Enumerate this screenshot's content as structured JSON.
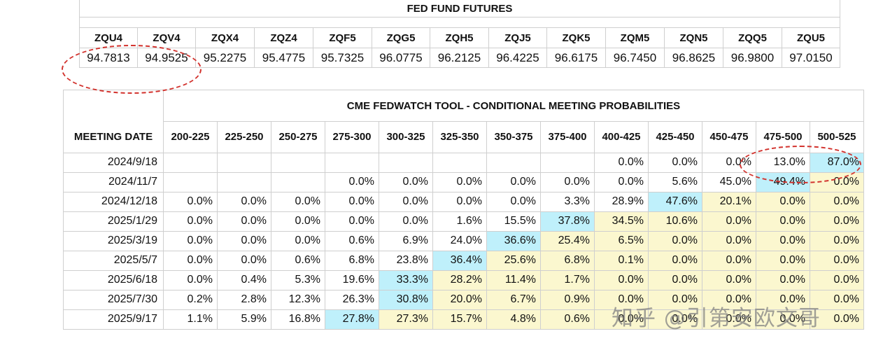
{
  "futures": {
    "title": "FED FUND FUTURES",
    "codes": [
      "ZQU4",
      "ZQV4",
      "ZQX4",
      "ZQZ4",
      "ZQF5",
      "ZQG5",
      "ZQH5",
      "ZQJ5",
      "ZQK5",
      "ZQM5",
      "ZQN5",
      "ZQQ5",
      "ZQU5"
    ],
    "prices": [
      "94.7813",
      "94.9525",
      "95.2275",
      "95.4775",
      "95.7325",
      "96.0775",
      "96.2125",
      "96.4225",
      "96.6175",
      "96.7450",
      "96.8625",
      "96.9800",
      "97.0150"
    ]
  },
  "fedwatch": {
    "title": "CME FEDWATCH TOOL - CONDITIONAL MEETING PROBABILITIES",
    "meeting_date_label": "MEETING DATE",
    "ranges": [
      "200-225",
      "225-250",
      "250-275",
      "275-300",
      "300-325",
      "325-350",
      "350-375",
      "375-400",
      "400-425",
      "425-450",
      "450-475",
      "475-500",
      "500-525"
    ],
    "rows": [
      {
        "date": "2024/9/18",
        "values": [
          "",
          "",
          "",
          "",
          "",
          "",
          "",
          "",
          "0.0%",
          "0.0%",
          "0.0%",
          "13.0%",
          "87.0%"
        ],
        "highlight": 12
      },
      {
        "date": "2024/11/7",
        "values": [
          "",
          "",
          "",
          "0.0%",
          "0.0%",
          "0.0%",
          "0.0%",
          "0.0%",
          "0.0%",
          "5.6%",
          "45.0%",
          "49.4%",
          "0.0%"
        ],
        "highlight": 11
      },
      {
        "date": "2024/12/18",
        "values": [
          "0.0%",
          "0.0%",
          "0.0%",
          "0.0%",
          "0.0%",
          "0.0%",
          "0.0%",
          "3.3%",
          "28.9%",
          "47.6%",
          "20.1%",
          "0.0%",
          "0.0%"
        ],
        "highlight": 9
      },
      {
        "date": "2025/1/29",
        "values": [
          "0.0%",
          "0.0%",
          "0.0%",
          "0.0%",
          "0.0%",
          "1.6%",
          "15.5%",
          "37.8%",
          "34.5%",
          "10.6%",
          "0.0%",
          "0.0%",
          "0.0%"
        ],
        "highlight": 7
      },
      {
        "date": "2025/3/19",
        "values": [
          "0.0%",
          "0.0%",
          "0.0%",
          "0.6%",
          "6.9%",
          "24.0%",
          "36.6%",
          "25.4%",
          "6.5%",
          "0.0%",
          "0.0%",
          "0.0%",
          "0.0%"
        ],
        "highlight": 6
      },
      {
        "date": "2025/5/7",
        "values": [
          "0.0%",
          "0.0%",
          "0.6%",
          "6.8%",
          "23.8%",
          "36.4%",
          "25.6%",
          "6.8%",
          "0.1%",
          "0.0%",
          "0.0%",
          "0.0%",
          "0.0%"
        ],
        "highlight": 5
      },
      {
        "date": "2025/6/18",
        "values": [
          "0.0%",
          "0.4%",
          "5.3%",
          "19.6%",
          "33.3%",
          "28.2%",
          "11.4%",
          "1.7%",
          "0.0%",
          "0.0%",
          "0.0%",
          "0.0%",
          "0.0%"
        ],
        "highlight": 4
      },
      {
        "date": "2025/7/30",
        "values": [
          "0.2%",
          "2.8%",
          "12.3%",
          "26.3%",
          "30.8%",
          "20.0%",
          "6.7%",
          "0.9%",
          "0.0%",
          "0.0%",
          "0.0%",
          "0.0%",
          "0.0%"
        ],
        "highlight": 4
      },
      {
        "date": "2025/9/17",
        "values": [
          "1.1%",
          "5.9%",
          "16.8%",
          "27.8%",
          "27.3%",
          "15.7%",
          "4.8%",
          "0.6%",
          "0.0%",
          "0.0%",
          "0.0%",
          "0.0%",
          "0.0%"
        ],
        "highlight": 3
      }
    ],
    "colors": {
      "yellow": "#fbf7cf",
      "blue": "#bff0fb",
      "border": "#cfcfcf"
    }
  },
  "annotations": {
    "ellipse_color": "#d2322d"
  },
  "watermark": "知乎 @引第安欧文哥"
}
